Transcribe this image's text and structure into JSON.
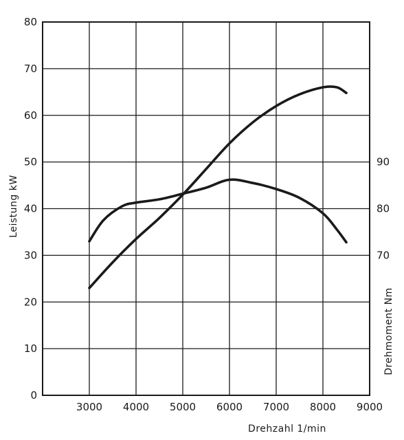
{
  "chart_data": {
    "type": "line",
    "xlabel": "Drehzahl 1/min",
    "ylabel_left": "Leistung kW",
    "ylabel_right": "Drehmoment Nm",
    "xlim": [
      2000,
      9000
    ],
    "ylim_left": [
      0,
      80
    ],
    "ylim_right": [
      40,
      120
    ],
    "x_ticks": [
      3000,
      4000,
      5000,
      6000,
      7000,
      8000,
      9000
    ],
    "y_ticks_left": [
      0,
      10,
      20,
      30,
      40,
      50,
      60,
      70,
      80
    ],
    "y_ticks_right": [
      70,
      80,
      90
    ],
    "grid": true,
    "line_color": "#1a1a1a",
    "series": [
      {
        "axis": "left",
        "x": [
          3000,
          3500,
          4000,
          4500,
          5000,
          5500,
          6000,
          6500,
          7000,
          7500,
          8000,
          8300,
          8500
        ],
        "y": [
          23,
          28.5,
          33.5,
          38,
          43,
          48.5,
          54,
          58.5,
          62,
          64.5,
          66,
          66,
          64.8
        ]
      },
      {
        "axis": "right",
        "x": [
          3000,
          3300,
          3700,
          4000,
          4500,
          5000,
          5500,
          6000,
          6500,
          7000,
          7500,
          8000,
          8300,
          8500
        ],
        "y": [
          73,
          77.5,
          80.5,
          81.3,
          82,
          83.2,
          84.5,
          86.2,
          85.5,
          84.2,
          82.3,
          79,
          75.5,
          72.8
        ]
      }
    ]
  }
}
